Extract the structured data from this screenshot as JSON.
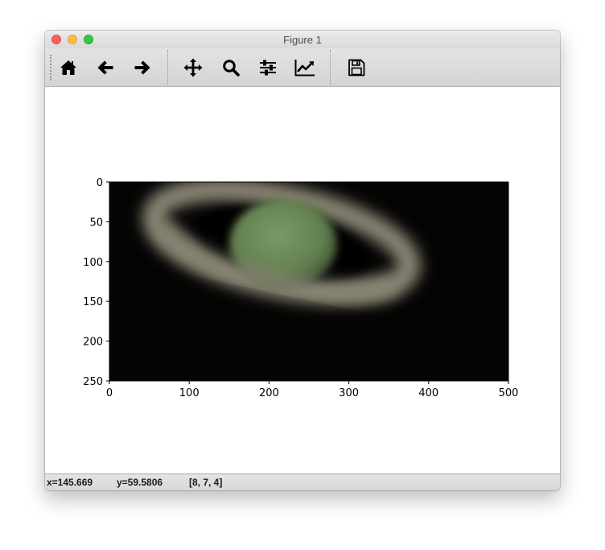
{
  "window": {
    "title": "Figure 1"
  },
  "toolbar": {
    "buttons": [
      {
        "name": "home-button",
        "icon": "home-icon",
        "tooltip": "Reset original view"
      },
      {
        "name": "back-button",
        "icon": "arrow-left-icon",
        "tooltip": "Back to previous view"
      },
      {
        "name": "forward-button",
        "icon": "arrow-right-icon",
        "tooltip": "Forward to next view"
      },
      {
        "name": "pan-button",
        "icon": "move-icon",
        "tooltip": "Pan axes"
      },
      {
        "name": "zoom-button",
        "icon": "magnifier-icon",
        "tooltip": "Zoom to rectangle"
      },
      {
        "name": "subplots-button",
        "icon": "sliders-icon",
        "tooltip": "Configure subplots"
      },
      {
        "name": "edit-axes-button",
        "icon": "line-chart-icon",
        "tooltip": "Edit axis"
      },
      {
        "name": "save-button",
        "icon": "floppy-disk-icon",
        "tooltip": "Save the figure"
      }
    ]
  },
  "status": {
    "x_readout": "x=145.669",
    "y_readout": "y=59.5806",
    "pixel_value": "[8, 7, 4]"
  },
  "image": {
    "subject": "Saturn with rings, blurred telescope photo",
    "background_color": "#050403",
    "planet_color": "#6f8c5f",
    "ring_color": "#8f8a78"
  },
  "chart_data": {
    "type": "image",
    "title": "",
    "xlabel": "",
    "ylabel": "",
    "xlim": [
      0,
      500
    ],
    "ylim": [
      250,
      0
    ],
    "x_ticks": [
      "0",
      "100",
      "200",
      "300",
      "400",
      "500"
    ],
    "y_ticks": [
      "0",
      "50",
      "100",
      "150",
      "200",
      "250"
    ],
    "x_tick_values": [
      0,
      100,
      200,
      300,
      400,
      500
    ],
    "y_tick_values": [
      0,
      50,
      100,
      150,
      200,
      250
    ],
    "image_extent": [
      0,
      500,
      250,
      0
    ]
  }
}
